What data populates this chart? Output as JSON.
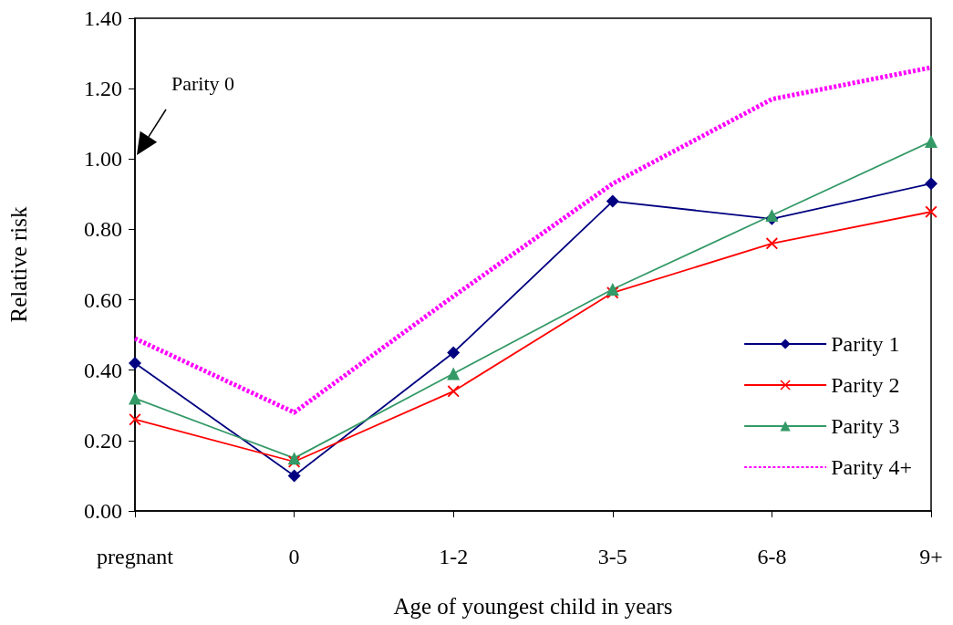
{
  "chart_data": {
    "type": "line",
    "xlabel": "Age of youngest child in years",
    "ylabel": "Relative risk",
    "categories": [
      "pregnant",
      "0",
      "1-2",
      "3-5",
      "6-8",
      "9+"
    ],
    "series": [
      {
        "name": "Parity 1",
        "color": "#000080",
        "marker": "diamond",
        "line_style": "solid",
        "values": [
          0.42,
          0.1,
          0.45,
          0.88,
          0.83,
          0.93
        ]
      },
      {
        "name": "Parity 2",
        "color": "#ff0000",
        "marker": "cross",
        "line_style": "solid",
        "values": [
          0.26,
          0.14,
          0.34,
          0.62,
          0.76,
          0.85
        ]
      },
      {
        "name": "Parity 3",
        "color": "#339966",
        "marker": "triangle",
        "line_style": "solid",
        "values": [
          0.32,
          0.15,
          0.39,
          0.63,
          0.84,
          1.05
        ]
      },
      {
        "name": "Parity 4+",
        "color": "#ff00ff",
        "marker": "none",
        "line_style": "dashed",
        "values": [
          0.49,
          0.28,
          0.61,
          0.93,
          1.17,
          1.26
        ]
      }
    ],
    "ylim": [
      0,
      1.4
    ],
    "yticks": [
      {
        "value": 0,
        "label": "0.00"
      },
      {
        "value": 0.2,
        "label": "0.20"
      },
      {
        "value": 0.4,
        "label": "0.40"
      },
      {
        "value": 0.6,
        "label": "0.60"
      },
      {
        "value": 0.8,
        "label": "0.80"
      },
      {
        "value": 1.0,
        "label": "1.00"
      },
      {
        "value": 1.2,
        "label": "1.20"
      },
      {
        "value": 1.4,
        "label": "1.40"
      }
    ],
    "annotations": [
      "Parity 0"
    ],
    "grid": false,
    "legend": "right"
  }
}
